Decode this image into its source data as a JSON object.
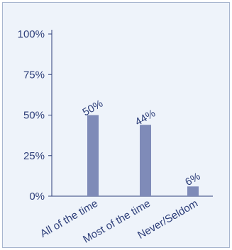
{
  "chart_data": {
    "type": "bar",
    "categories": [
      "All of the time",
      "Most of the time",
      "Never/Seldom"
    ],
    "values": [
      50,
      44,
      6
    ],
    "data_labels": [
      "50%",
      "44%",
      "6%"
    ],
    "y_ticks": [
      "0%",
      "25%",
      "50%",
      "75%",
      "100%"
    ],
    "ylim": [
      0,
      100
    ],
    "grid": false,
    "title": "",
    "xlabel": "",
    "ylabel": "",
    "colors": {
      "bar": "#7f8bb8",
      "axis": "#2e3f7a",
      "text": "#2e3f7a",
      "background": "#eef3fa",
      "border": "#a8b6cf"
    }
  }
}
